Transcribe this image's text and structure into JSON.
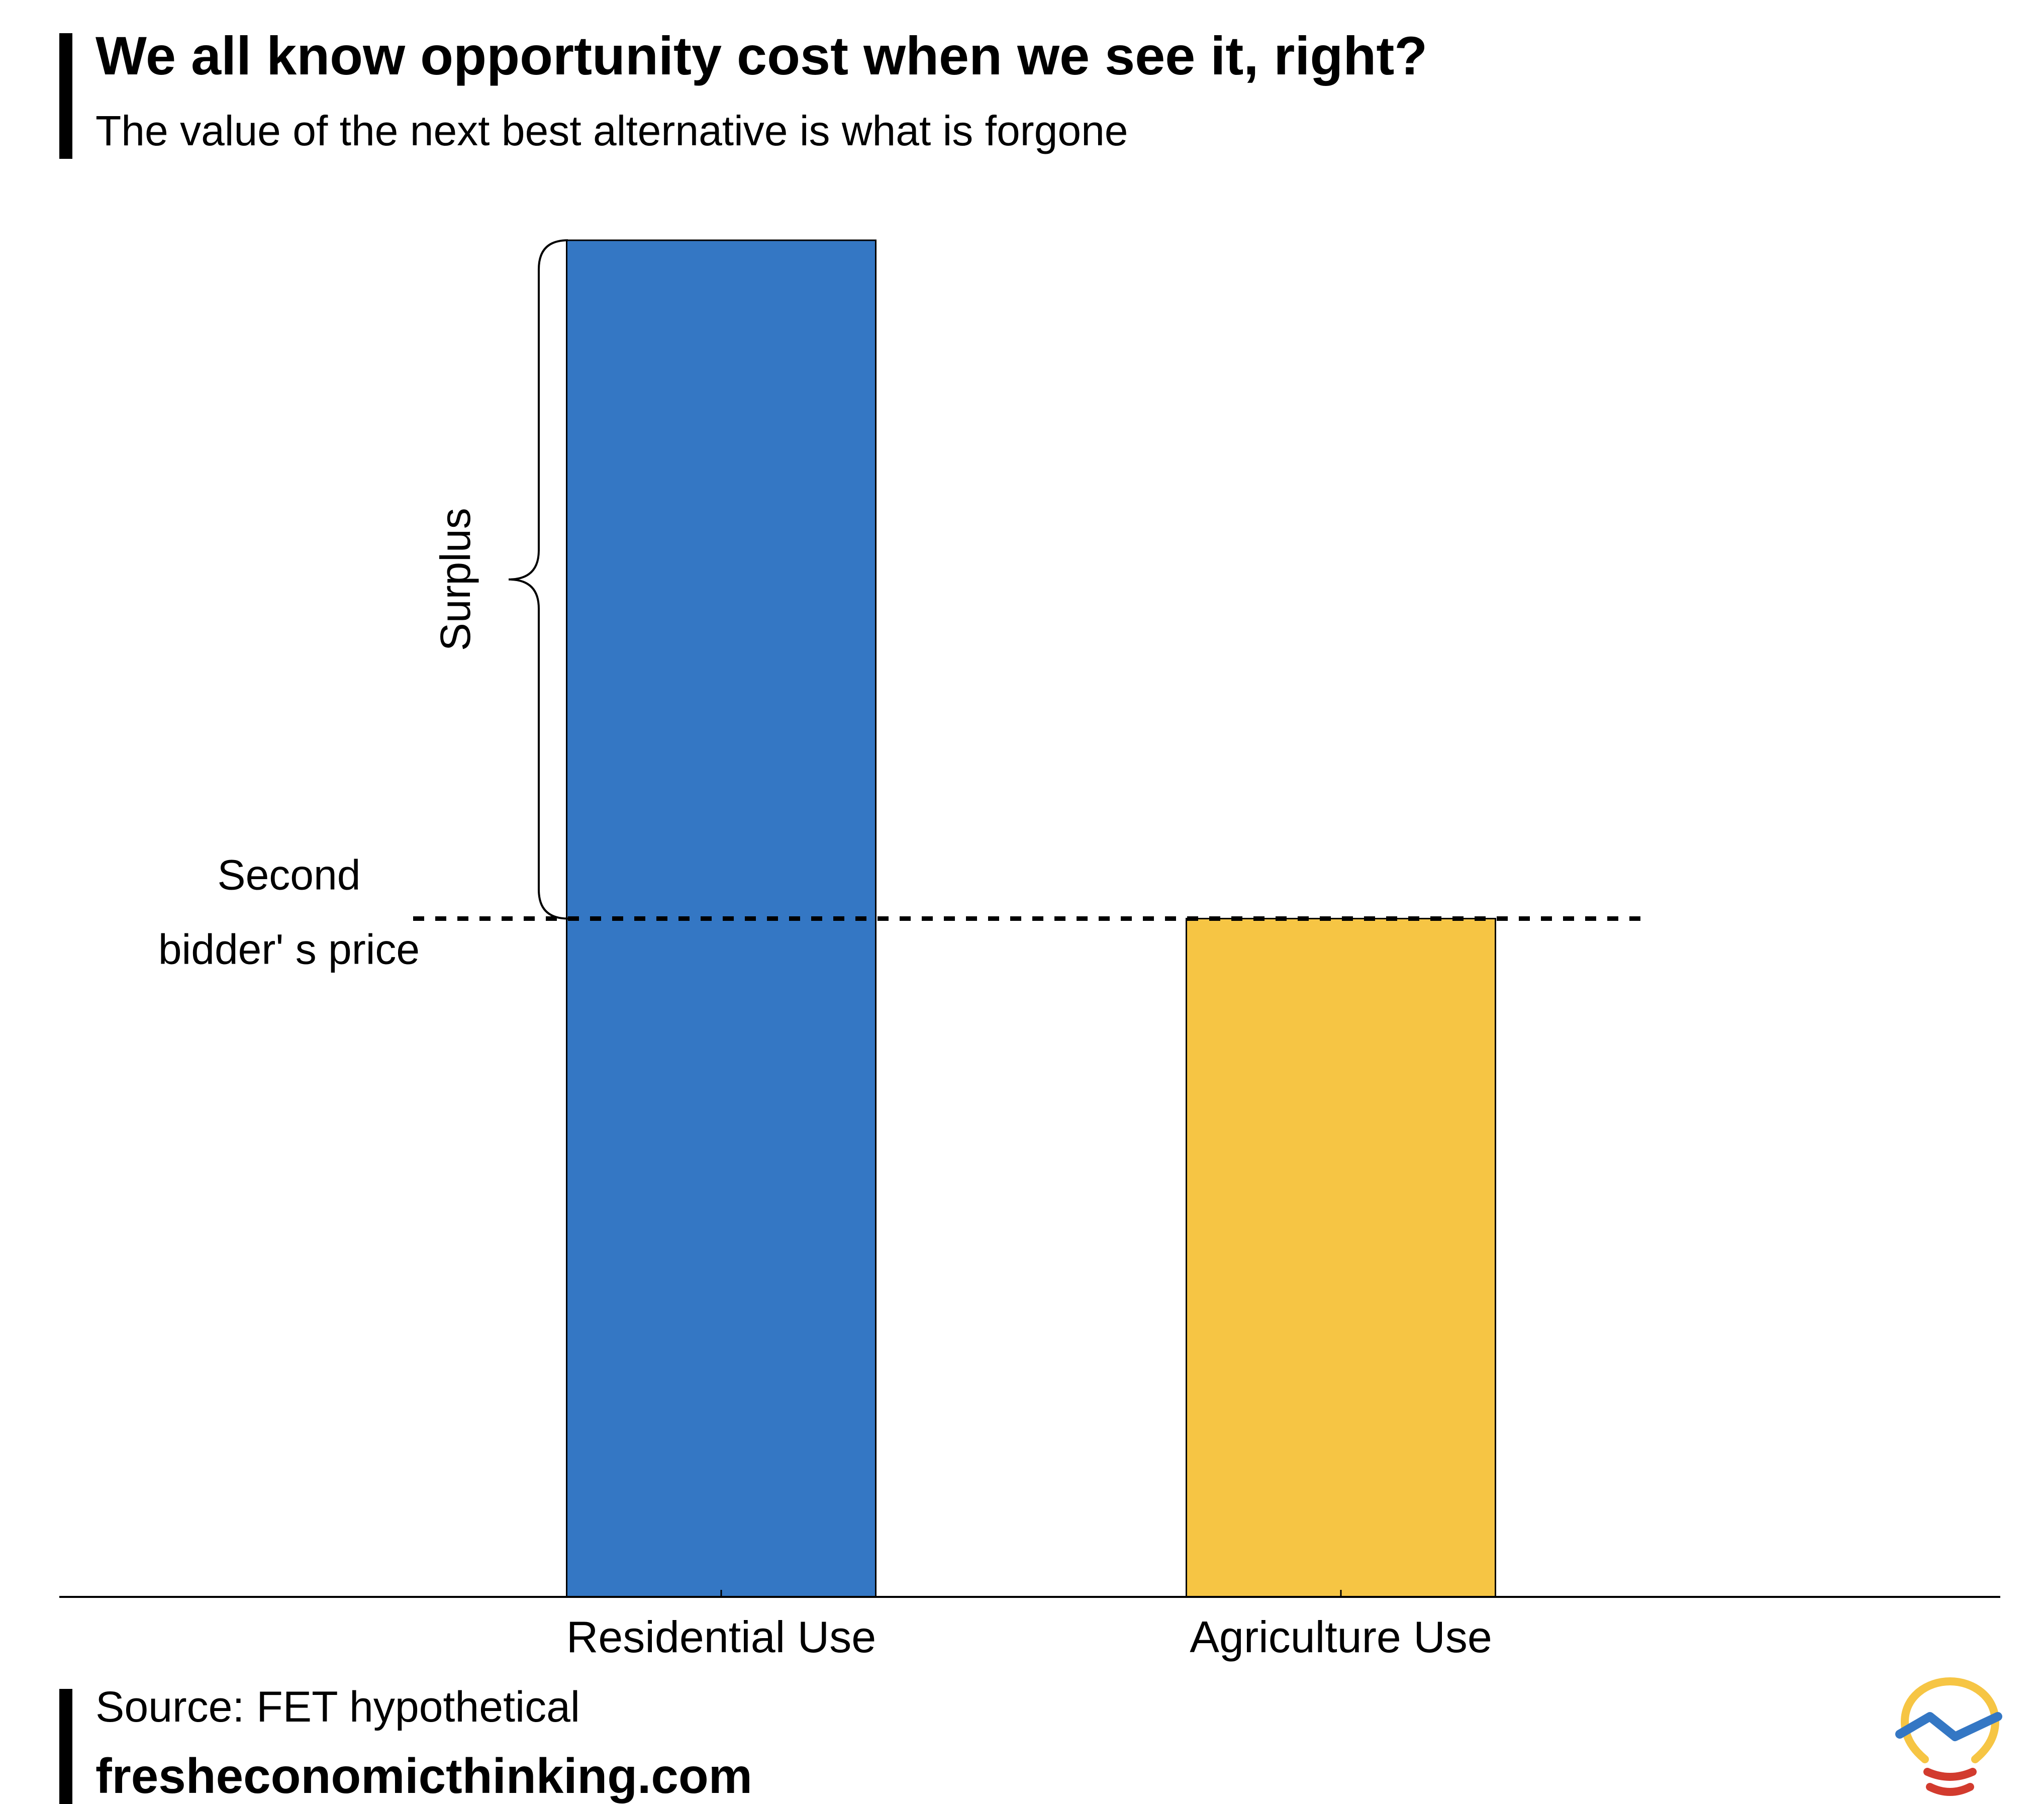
{
  "header": {
    "title": "We all know opportunity cost when we see it, right?",
    "subtitle": "The value of the next best alternative is what is forgone"
  },
  "footer": {
    "source": "Source: FET hypothetical",
    "website": "fresheconomicthinking.com"
  },
  "chart_data": {
    "type": "bar",
    "title": "We all know opportunity cost when we see it, right?",
    "subtitle": "The value of the next best alternative is what is forgone",
    "categories": [
      "Residential Use",
      "Agriculture Use"
    ],
    "values": [
      100,
      50
    ],
    "colors": [
      "#3477C4",
      "#F6C544"
    ],
    "ylim": [
      0,
      100
    ],
    "xlabel": "",
    "ylabel": "",
    "grid": false,
    "annotations": {
      "reference_line": {
        "label_line1": "Second",
        "label_line2": "bidder' s price",
        "value": 50,
        "style": "dotted"
      },
      "brace": {
        "label": "Surplus",
        "from": 50,
        "to": 100
      }
    }
  },
  "logo": {
    "icon": "lightbulb-icon",
    "bulb_color": "#F6C544",
    "line_color": "#3477C4",
    "base_color": "#D23B2E"
  }
}
